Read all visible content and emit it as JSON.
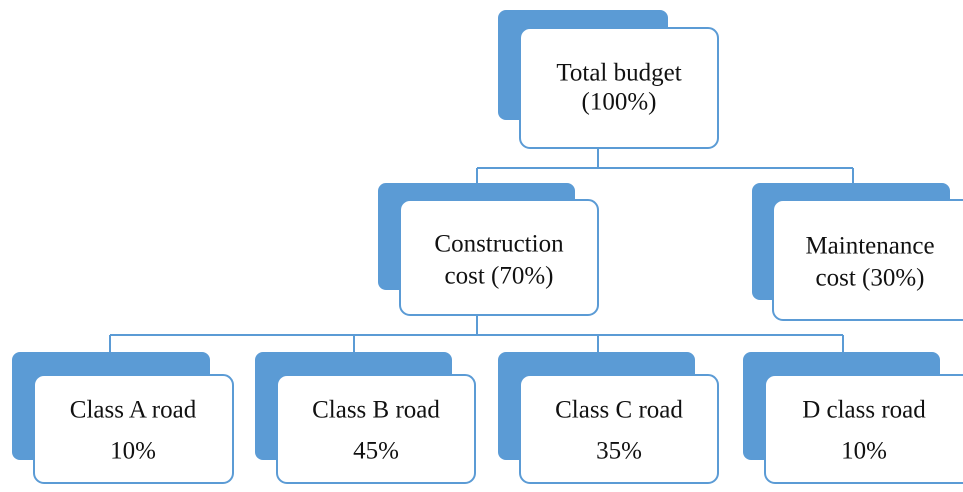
{
  "nodes": [
    {
      "lines": [
        "Total budget",
        "(100%)"
      ]
    },
    {
      "lines": [
        "Construction",
        "cost (70%)"
      ]
    },
    {
      "lines": [
        "Maintenance",
        "cost (30%)"
      ]
    },
    {
      "lines": [
        "Class A road",
        "10%"
      ]
    },
    {
      "lines": [
        "Class B road",
        "45%"
      ]
    },
    {
      "lines": [
        "Class C road",
        "35%"
      ]
    },
    {
      "lines": [
        "D class road",
        "10%"
      ]
    }
  ]
}
